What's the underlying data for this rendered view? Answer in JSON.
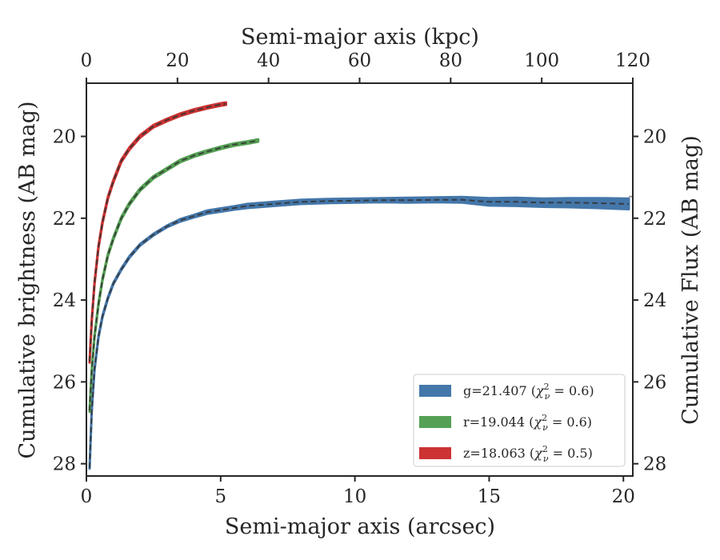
{
  "chart_data": {
    "type": "line",
    "xlabel": "Semi-major axis (arcsec)",
    "x2label": "Semi-major axis (kpc)",
    "ylabel": "Cumulative brightness (AB mag)",
    "y2label": "Cumulative Flux (AB mag)",
    "xlim": [
      0,
      20.35
    ],
    "x2lim": [
      0,
      120
    ],
    "ylim": [
      28.3,
      18.7
    ],
    "y_inverted": true,
    "xticks": [
      "0",
      "5",
      "10",
      "15",
      "20"
    ],
    "x2ticks": [
      "0",
      "20",
      "40",
      "60",
      "80",
      "100",
      "120"
    ],
    "yticks": [
      "20",
      "22",
      "24",
      "26",
      "28"
    ],
    "y2ticks": [
      "20",
      "22",
      "24",
      "26",
      "28"
    ],
    "legend_position": "lower-right",
    "grid": false,
    "series": [
      {
        "name": "g=21.407 (χ²ᵥ = 0.6)",
        "legend_main": "g=21.407",
        "chi2": "0.6",
        "color": "#4477aa",
        "x": [
          0.12,
          0.2,
          0.3,
          0.45,
          0.6,
          0.8,
          1.0,
          1.3,
          1.6,
          2.0,
          2.5,
          3.0,
          3.5,
          4.0,
          4.5,
          5.0,
          5.5,
          6.0,
          7.0,
          8.0,
          9.0,
          10.0,
          11.0,
          12.0,
          13.0,
          14.0,
          15.0,
          16.0,
          17.0,
          18.0,
          19.0,
          20.2
        ],
        "y": [
          28.1,
          26.7,
          25.7,
          24.9,
          24.4,
          23.95,
          23.6,
          23.25,
          22.95,
          22.65,
          22.4,
          22.2,
          22.05,
          21.95,
          21.85,
          21.8,
          21.75,
          21.7,
          21.65,
          21.6,
          21.58,
          21.57,
          21.56,
          21.56,
          21.55,
          21.55,
          21.6,
          21.6,
          21.62,
          21.62,
          21.63,
          21.65
        ],
        "band_halfwidth": [
          0.02,
          0.02,
          0.02,
          0.02,
          0.02,
          0.02,
          0.02,
          0.02,
          0.02,
          0.02,
          0.02,
          0.02,
          0.03,
          0.03,
          0.04,
          0.04,
          0.04,
          0.05,
          0.05,
          0.05,
          0.05,
          0.05,
          0.05,
          0.06,
          0.06,
          0.07,
          0.09,
          0.1,
          0.1,
          0.11,
          0.12,
          0.13
        ]
      },
      {
        "name": "r=19.044 (χ²ᵥ = 0.6)",
        "legend_main": "r=19.044",
        "chi2": "0.6",
        "color": "#55a055",
        "x": [
          0.12,
          0.2,
          0.3,
          0.45,
          0.6,
          0.8,
          1.0,
          1.3,
          1.6,
          2.0,
          2.5,
          3.0,
          3.5,
          4.0,
          4.5,
          5.0,
          5.5,
          6.0,
          6.4
        ],
        "y": [
          26.7,
          25.7,
          24.9,
          24.1,
          23.5,
          22.9,
          22.5,
          22.0,
          21.65,
          21.3,
          21.0,
          20.8,
          20.6,
          20.47,
          20.37,
          20.28,
          20.2,
          20.15,
          20.1
        ],
        "band_halfwidth": 0.03
      },
      {
        "name": "z=18.063 (χ²ᵥ = 0.5)",
        "legend_main": "z=18.063",
        "chi2": "0.5",
        "color": "#cc3333",
        "x": [
          0.12,
          0.2,
          0.3,
          0.45,
          0.6,
          0.8,
          1.0,
          1.3,
          1.6,
          2.0,
          2.5,
          3.0,
          3.5,
          4.0,
          4.5,
          5.0,
          5.2
        ],
        "y": [
          25.5,
          24.5,
          23.6,
          22.7,
          22.1,
          21.5,
          21.1,
          20.6,
          20.3,
          20.0,
          19.75,
          19.6,
          19.47,
          19.37,
          19.29,
          19.22,
          19.2
        ],
        "band_halfwidth": 0.03
      }
    ],
    "model_line": {
      "style": "dashed",
      "color": "#333333",
      "g_extension": {
        "x": [
          20.2,
          20.35
        ],
        "y": [
          21.47,
          21.47
        ],
        "color": "#999999"
      }
    }
  }
}
